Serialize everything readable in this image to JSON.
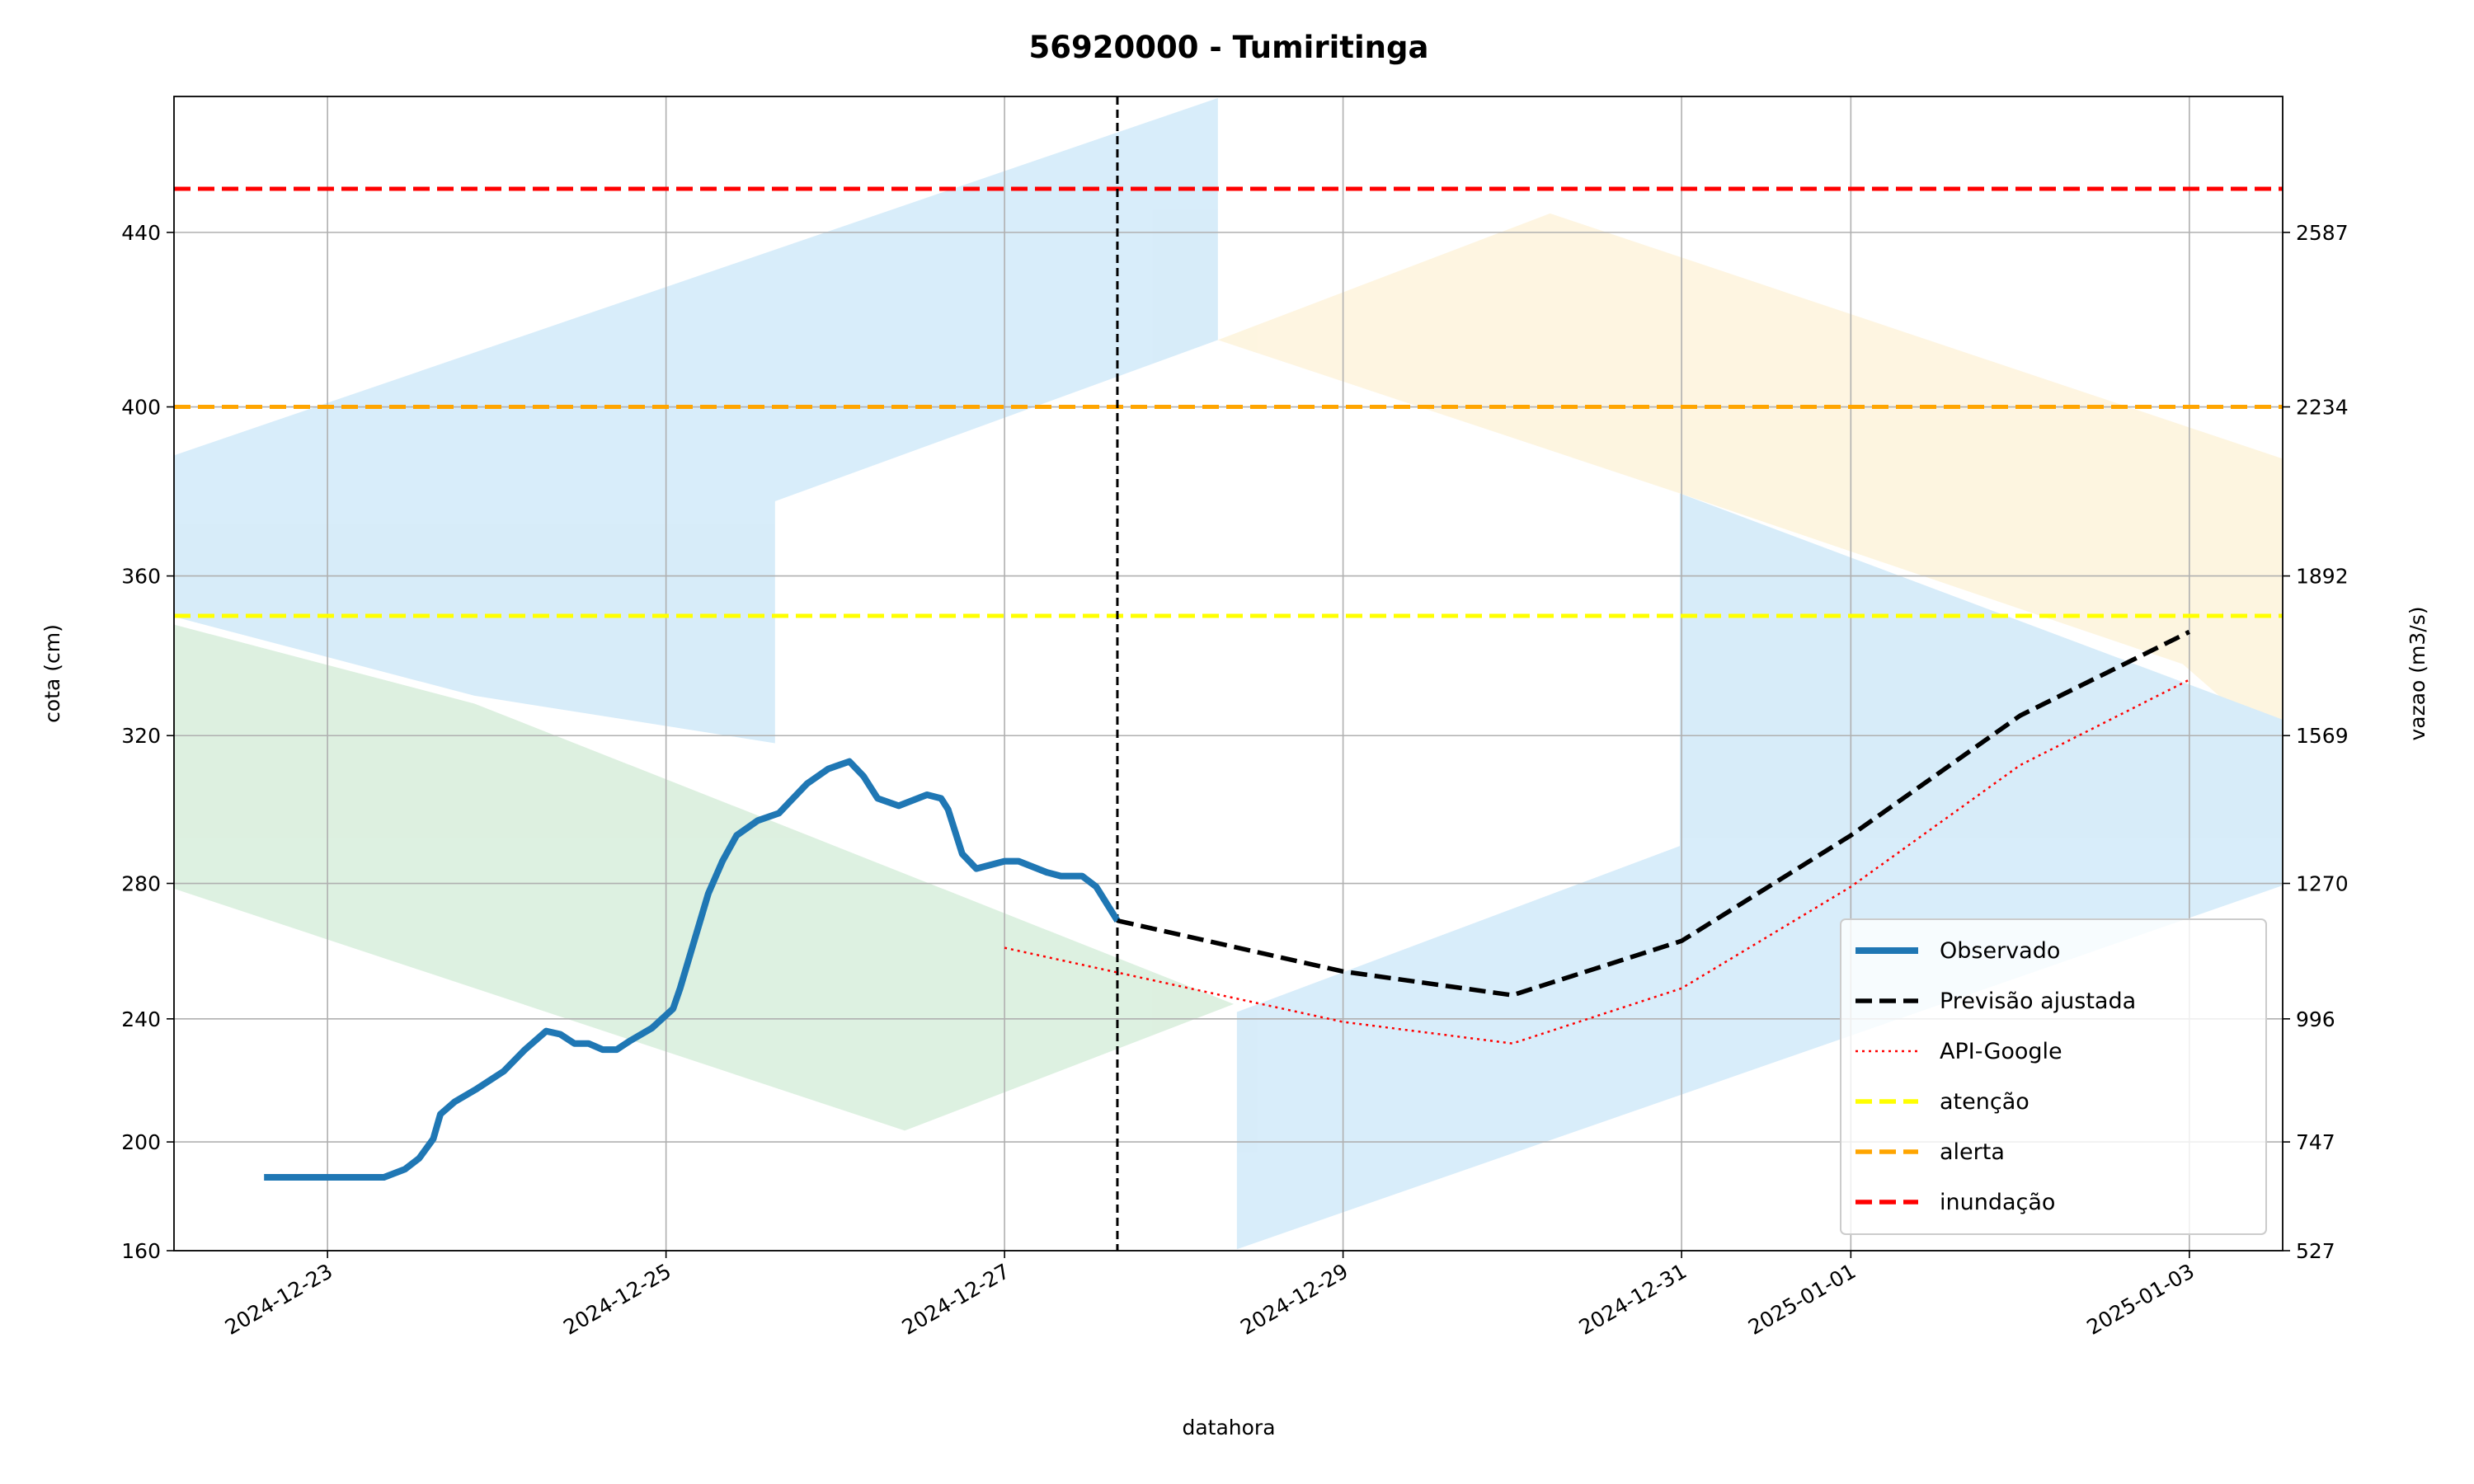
{
  "chart_data": {
    "type": "line",
    "title": "56920000 - Tumiritinga",
    "x_label": "datahora",
    "y_label": "cota (cm)",
    "y2_label": "vazao (m3/s)",
    "xlim": [
      "2024-12-22 02:14",
      "2025-01-03 13:14"
    ],
    "xticks": [
      "2024-12-23",
      "2024-12-25",
      "2024-12-27",
      "2024-12-29",
      "2024-12-31",
      "2025-01-01",
      "2025-01-03"
    ],
    "yticks": [
      160,
      200,
      240,
      280,
      320,
      360,
      400,
      440
    ],
    "y2lim": [
      527,
      2862
    ],
    "y2ticks": [
      527,
      747,
      996,
      1270,
      1569,
      1892,
      2234,
      2587
    ],
    "grid": true,
    "legend": "lower right",
    "vline_x": "2024-12-27 16:00",
    "series": [
      {
        "name": "Observado",
        "color": "#1f77b4",
        "linestyle": "solid",
        "x": [
          "2024-12-22 15:00",
          "2024-12-23 08:00",
          "2024-12-23 11:00",
          "2024-12-23 13:00",
          "2024-12-23 15:00",
          "2024-12-23 16:00",
          "2024-12-23 18:00",
          "2024-12-23 21:00",
          "2024-12-24 01:00",
          "2024-12-24 04:00",
          "2024-12-24 07:00",
          "2024-12-24 09:00",
          "2024-12-24 11:00",
          "2024-12-24 13:00",
          "2024-12-24 15:00",
          "2024-12-24 17:00",
          "2024-12-24 19:00",
          "2024-12-24 22:00",
          "2024-12-25 01:00",
          "2024-12-25 02:00",
          "2024-12-25 04:00",
          "2024-12-25 06:00",
          "2024-12-25 08:00",
          "2024-12-25 10:00",
          "2024-12-25 13:00",
          "2024-12-25 16:00",
          "2024-12-25 18:00",
          "2024-12-25 20:00",
          "2024-12-25 23:00",
          "2024-12-26 02:00",
          "2024-12-26 04:00",
          "2024-12-26 06:00",
          "2024-12-26 09:00",
          "2024-12-26 13:00",
          "2024-12-26 15:00",
          "2024-12-26 16:00",
          "2024-12-26 18:00",
          "2024-12-26 20:00",
          "2024-12-26 22:00",
          "2024-12-27 00:00",
          "2024-12-27 02:00",
          "2024-12-27 06:00",
          "2024-12-27 08:00",
          "2024-12-27 11:00",
          "2024-12-27 13:00",
          "2024-12-27 16:00"
        ],
        "values": [
          187,
          187,
          190,
          194,
          201,
          209,
          213,
          217,
          223,
          230,
          236,
          235,
          232,
          232,
          230,
          230,
          233,
          237,
          243,
          249,
          263,
          277,
          286,
          293,
          297,
          299,
          303,
          307,
          311,
          313,
          309,
          303,
          301,
          304,
          303,
          300,
          288,
          284,
          285,
          286,
          286,
          283,
          282,
          282,
          279,
          269
        ]
      },
      {
        "name": "Previsão ajustada",
        "color": "#000000",
        "linestyle": "dashed",
        "x": [
          "2024-12-27 16:00",
          "2024-12-29 00:00",
          "2024-12-30 00:00",
          "2024-12-31 00:00",
          "2025-01-01 00:00",
          "2025-01-02 00:00",
          "2025-01-03 00:00"
        ],
        "values": [
          269,
          254,
          247,
          263,
          293,
          325,
          346
        ]
      },
      {
        "name": "API-Google",
        "color": "#ff0000",
        "linestyle": "dotted",
        "x": [
          "2024-12-27 00:00",
          "2024-12-29 00:00",
          "2024-12-30 00:00",
          "2024-12-31 00:00",
          "2025-01-01 00:00",
          "2025-01-02 00:00",
          "2025-01-03 00:00"
        ],
        "values": [
          261,
          239,
          232,
          249,
          279,
          312,
          334
        ]
      }
    ],
    "hlines": [
      {
        "name": "atenção",
        "color": "#ffff00",
        "value": 350
      },
      {
        "name": "alerta",
        "color": "#ffa500",
        "value": 400
      },
      {
        "name": "inundação",
        "color": "#ff0000",
        "value": 450
      }
    ]
  }
}
